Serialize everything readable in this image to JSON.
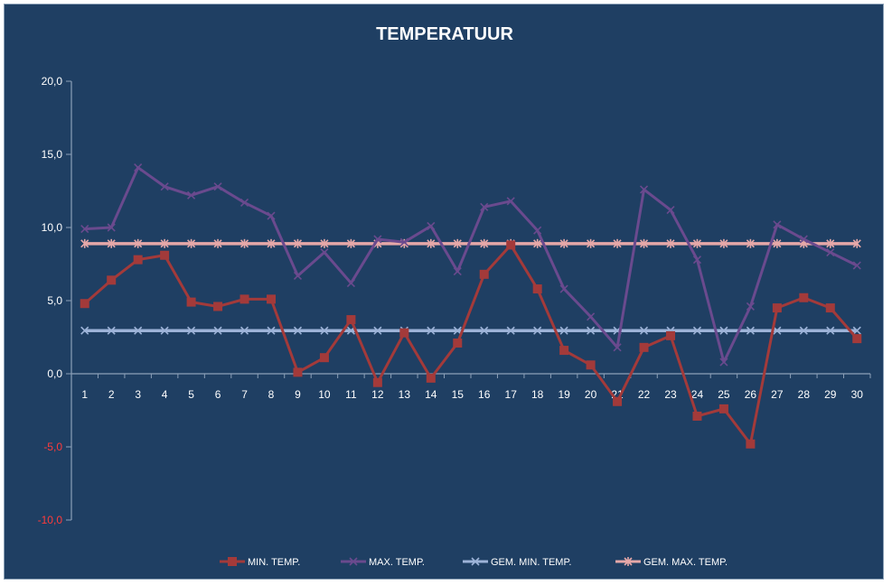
{
  "chart_data": {
    "type": "line",
    "title": "TEMPERATUUR",
    "xlabel": "",
    "ylabel": "",
    "categories": [
      "1",
      "2",
      "3",
      "4",
      "5",
      "6",
      "7",
      "8",
      "9",
      "10",
      "11",
      "12",
      "13",
      "14",
      "15",
      "16",
      "17",
      "18",
      "19",
      "20",
      "21",
      "22",
      "23",
      "24",
      "25",
      "26",
      "27",
      "28",
      "29",
      "30"
    ],
    "ylim": [
      -10,
      20
    ],
    "yticks": [
      20,
      15,
      10,
      5,
      0,
      -5,
      -10
    ],
    "ytick_labels": [
      "20,0",
      "15,0",
      "10,0",
      "5,0",
      "0,0",
      "-5,0",
      "-10,0"
    ],
    "negative_tick_color": "#ff3b3b",
    "grid": false,
    "legend_position": "bottom",
    "series": [
      {
        "name": "MIN. TEMP.",
        "color": "#a33a3a",
        "marker": "square",
        "values": [
          4.8,
          6.4,
          7.8,
          8.1,
          4.9,
          4.6,
          5.1,
          5.1,
          0.1,
          1.1,
          3.7,
          -0.6,
          2.8,
          -0.3,
          2.1,
          6.8,
          8.8,
          5.8,
          1.6,
          0.6,
          -1.9,
          1.8,
          2.6,
          -2.9,
          -2.4,
          -4.8,
          4.5,
          5.2,
          4.5,
          2.4
        ]
      },
      {
        "name": "MAX. TEMP.",
        "color": "#6a4a8e",
        "marker": "x",
        "values": [
          9.9,
          10.0,
          14.1,
          12.8,
          12.2,
          12.8,
          11.7,
          10.8,
          6.7,
          8.3,
          6.2,
          9.2,
          9.0,
          10.1,
          7.0,
          11.4,
          11.8,
          9.8,
          5.8,
          3.9,
          1.8,
          12.6,
          11.2,
          7.8,
          0.8,
          4.6,
          10.2,
          9.2,
          8.3,
          7.4
        ]
      },
      {
        "name": "GEM. MIN. TEMP.",
        "color": "#9db3d8",
        "marker": "x",
        "values": [
          2.95,
          2.95,
          2.95,
          2.95,
          2.95,
          2.95,
          2.95,
          2.95,
          2.95,
          2.95,
          2.95,
          2.95,
          2.95,
          2.95,
          2.95,
          2.95,
          2.95,
          2.95,
          2.95,
          2.95,
          2.95,
          2.95,
          2.95,
          2.95,
          2.95,
          2.95,
          2.95,
          2.95,
          2.95,
          2.95
        ]
      },
      {
        "name": "GEM. MAX. TEMP.",
        "color": "#e6a8a8",
        "marker": "star",
        "values": [
          8.9,
          8.9,
          8.9,
          8.9,
          8.9,
          8.9,
          8.9,
          8.9,
          8.9,
          8.9,
          8.9,
          8.9,
          8.9,
          8.9,
          8.9,
          8.9,
          8.9,
          8.9,
          8.9,
          8.9,
          8.9,
          8.9,
          8.9,
          8.9,
          8.9,
          8.9,
          8.9,
          8.9,
          8.9,
          8.9
        ]
      }
    ]
  }
}
